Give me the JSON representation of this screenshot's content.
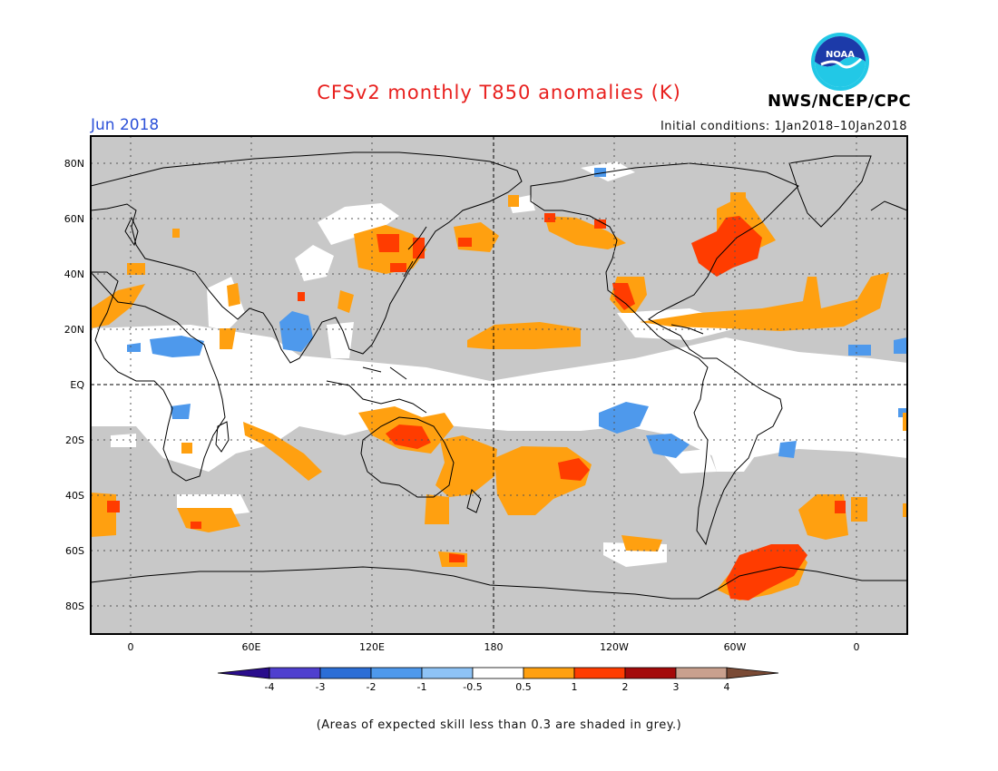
{
  "header": {
    "title": "CFSv2 monthly T850 anomalies (K)",
    "month": "Jun 2018",
    "initial_conditions": "Initial conditions: 1Jan2018–10Jan2018",
    "org": "NWS/NCEP/CPC",
    "logo_text": "NOAA"
  },
  "map": {
    "lat_labels": [
      "80N",
      "60N",
      "40N",
      "20N",
      "EQ",
      "20S",
      "40S",
      "60S",
      "80S"
    ],
    "lon_labels": [
      "0",
      "60E",
      "120E",
      "180",
      "120W",
      "60W",
      "0"
    ],
    "colors": {
      "grey_low_skill": "#c8c8c8",
      "near_normal": "#ffffff",
      "coastline": "#000000"
    }
  },
  "legend": {
    "labels": [
      "-4",
      "-3",
      "-2",
      "-1",
      "-0.5",
      "0.5",
      "1",
      "2",
      "3",
      "4"
    ],
    "colors": [
      "#2a0d8c",
      "#4f3fcf",
      "#2c6ed6",
      "#4e99ec",
      "#8ec3f6",
      "#ffffff",
      "#ffa010",
      "#ff3c00",
      "#a40a0a",
      "#c9a08e",
      "#7a4a35"
    ]
  },
  "footnote": "(Areas of expected skill less than 0.3 are shaded in grey.)"
}
